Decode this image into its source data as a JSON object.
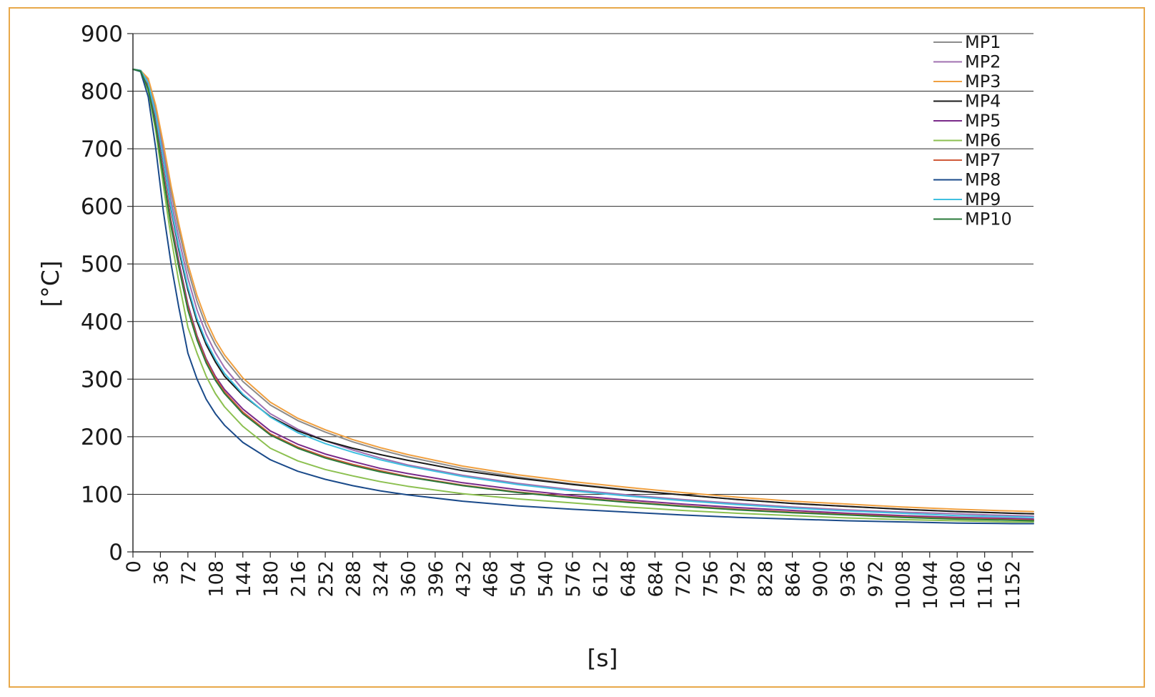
{
  "chart_data": {
    "type": "line",
    "title": "",
    "xlabel": "[s]",
    "ylabel": "[°C]",
    "ylim": [
      0,
      900
    ],
    "xlim": [
      0,
      1180
    ],
    "yticks": [
      0,
      100,
      200,
      300,
      400,
      500,
      600,
      700,
      800,
      900
    ],
    "xticks": [
      0,
      36,
      72,
      108,
      144,
      180,
      216,
      252,
      288,
      324,
      360,
      396,
      432,
      468,
      504,
      540,
      576,
      612,
      648,
      684,
      720,
      756,
      792,
      828,
      864,
      900,
      936,
      972,
      1008,
      1044,
      1080,
      1116,
      1152
    ],
    "grid": "horizontal",
    "legend_position": "top-right",
    "x": [
      0,
      10,
      20,
      30,
      40,
      50,
      60,
      72,
      84,
      96,
      108,
      120,
      144,
      180,
      216,
      252,
      288,
      324,
      360,
      432,
      504,
      576,
      648,
      720,
      792,
      864,
      936,
      1008,
      1080,
      1152,
      1180
    ],
    "series": [
      {
        "name": "MP1",
        "color": "#8c8c8c",
        "values": [
          838,
          836,
          820,
          770,
          700,
          625,
          560,
          490,
          435,
          392,
          360,
          335,
          296,
          255,
          228,
          208,
          191,
          177,
          165,
          145,
          130,
          118,
          108,
          99,
          91,
          84,
          79,
          74,
          70,
          67,
          66
        ]
      },
      {
        "name": "MP2",
        "color": "#a070b0",
        "values": [
          838,
          836,
          815,
          760,
          690,
          610,
          545,
          475,
          420,
          378,
          346,
          320,
          282,
          240,
          213,
          193,
          177,
          163,
          151,
          133,
          119,
          108,
          99,
          91,
          84,
          78,
          73,
          69,
          66,
          63,
          62
        ]
      },
      {
        "name": "MP3",
        "color": "#f0a040",
        "values": [
          838,
          836,
          822,
          775,
          708,
          635,
          570,
          500,
          445,
          402,
          368,
          342,
          302,
          260,
          232,
          212,
          195,
          181,
          169,
          149,
          134,
          122,
          112,
          103,
          95,
          88,
          83,
          78,
          74,
          71,
          70
        ]
      },
      {
        "name": "MP4",
        "color": "#1a1a1a",
        "values": [
          838,
          836,
          812,
          755,
          678,
          595,
          525,
          455,
          400,
          360,
          330,
          305,
          272,
          235,
          210,
          193,
          180,
          169,
          159,
          141,
          128,
          117,
          107,
          99,
          91,
          84,
          79,
          74,
          70,
          67,
          66
        ]
      },
      {
        "name": "MP5",
        "color": "#7a2a8a",
        "values": [
          838,
          835,
          808,
          745,
          660,
          575,
          505,
          430,
          375,
          335,
          305,
          282,
          248,
          210,
          187,
          170,
          157,
          145,
          136,
          120,
          108,
          98,
          90,
          83,
          77,
          72,
          67,
          63,
          60,
          58,
          57
        ]
      },
      {
        "name": "MP6",
        "color": "#8cc050",
        "values": [
          838,
          835,
          800,
          730,
          635,
          545,
          470,
          390,
          345,
          305,
          275,
          252,
          218,
          180,
          158,
          143,
          132,
          122,
          114,
          101,
          92,
          85,
          78,
          72,
          67,
          63,
          59,
          56,
          54,
          52,
          52
        ]
      },
      {
        "name": "MP7",
        "color": "#d05a3a",
        "values": [
          838,
          835,
          806,
          740,
          655,
          570,
          498,
          425,
          372,
          332,
          302,
          278,
          243,
          205,
          182,
          165,
          152,
          141,
          131,
          116,
          104,
          95,
          87,
          80,
          74,
          69,
          65,
          61,
          58,
          56,
          55
        ]
      },
      {
        "name": "MP8",
        "color": "#1a4a8a",
        "values": [
          838,
          834,
          790,
          700,
          590,
          500,
          425,
          345,
          300,
          265,
          240,
          220,
          190,
          160,
          140,
          126,
          115,
          106,
          99,
          88,
          80,
          74,
          69,
          64,
          60,
          57,
          54,
          52,
          50,
          49,
          49
        ]
      },
      {
        "name": "MP9",
        "color": "#40c0e0",
        "values": [
          838,
          836,
          814,
          758,
          680,
          598,
          530,
          460,
          405,
          365,
          335,
          310,
          274,
          234,
          207,
          188,
          173,
          160,
          149,
          131,
          117,
          106,
          97,
          89,
          82,
          76,
          71,
          67,
          63,
          61,
          60
        ]
      },
      {
        "name": "MP10",
        "color": "#2a7a3a",
        "values": [
          838,
          835,
          804,
          738,
          650,
          565,
          495,
          420,
          368,
          328,
          298,
          275,
          240,
          203,
          180,
          163,
          150,
          139,
          130,
          115,
          103,
          94,
          86,
          79,
          73,
          68,
          64,
          60,
          57,
          55,
          54
        ]
      }
    ]
  }
}
